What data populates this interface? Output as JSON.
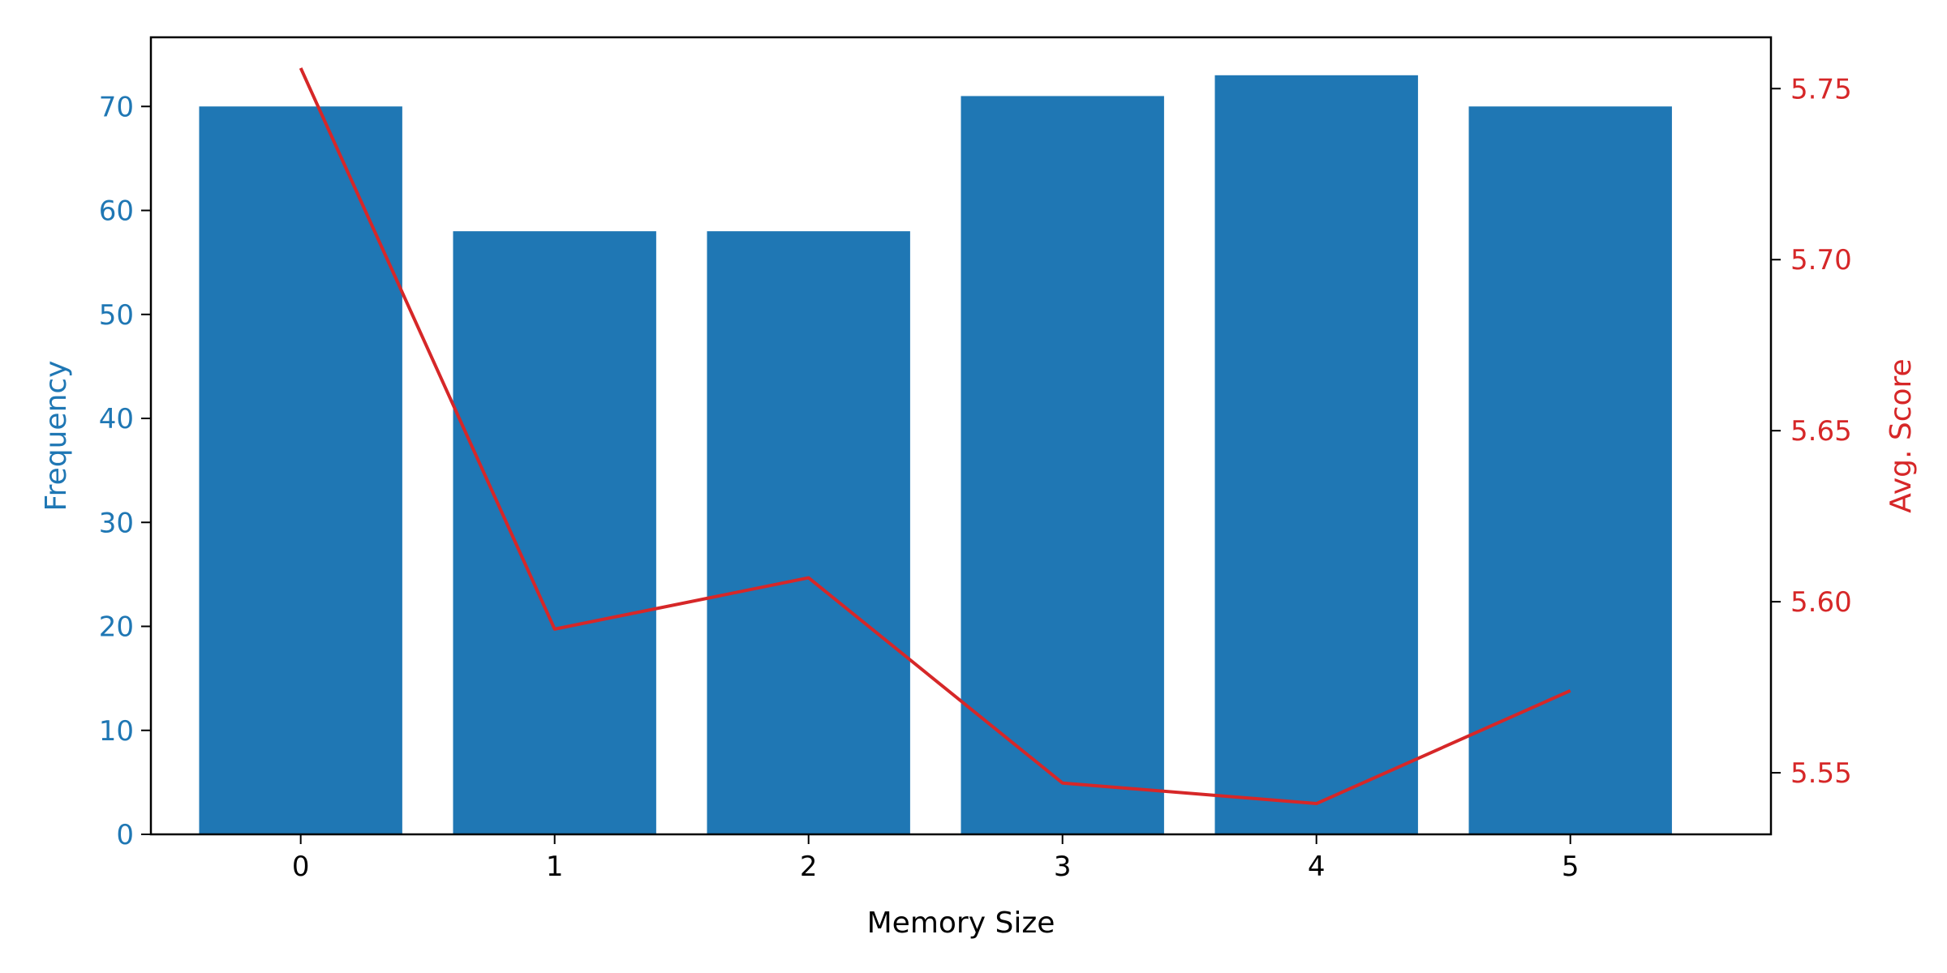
{
  "chart_data": {
    "type": "bar",
    "title": "",
    "xlabel": "Memory Size",
    "categories": [
      "0",
      "1",
      "2",
      "3",
      "4",
      "5"
    ],
    "left_axis": {
      "label": "Frequency",
      "color": "#1f77b4",
      "ylim": [
        0,
        76.65
      ],
      "ticks": [
        0,
        10,
        20,
        30,
        40,
        50,
        60,
        70
      ],
      "tick_labels": [
        "0",
        "10",
        "20",
        "30",
        "40",
        "50",
        "60",
        "70"
      ]
    },
    "right_axis": {
      "label": "Avg. Score",
      "color": "#d62728",
      "ylim": [
        5.532,
        5.765
      ],
      "ticks": [
        5.55,
        5.6,
        5.65,
        5.7,
        5.75
      ],
      "tick_labels": [
        "5.55",
        "5.60",
        "5.65",
        "5.70",
        "5.75"
      ]
    },
    "series": [
      {
        "kind": "bar",
        "axis": "left",
        "color": "#1f77b4",
        "values": [
          70,
          58,
          58,
          71,
          73,
          70
        ]
      },
      {
        "kind": "line",
        "axis": "right",
        "color": "#d62728",
        "values": [
          5.756,
          5.592,
          5.607,
          5.547,
          5.541,
          5.574
        ]
      }
    ],
    "grid": false,
    "legend": "none"
  }
}
